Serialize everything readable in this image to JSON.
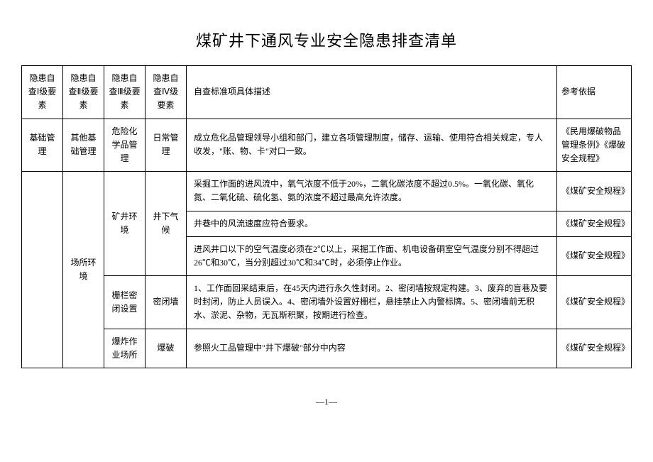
{
  "title": "煤矿井下通风专业安全隐患排查清单",
  "headers": {
    "c1": "隐患自查Ⅰ级要素",
    "c2": "隐患自查Ⅱ级要素",
    "c3": "隐患自查Ⅲ级要素",
    "c4": "隐患自查Ⅳ级要素",
    "c5": "自查标准项具体描述",
    "c6": "参考依据"
  },
  "rows": [
    {
      "c1": "基础管理",
      "c2": "其他基础管理",
      "c3": "危险化学品管理",
      "c4": "日常管理",
      "c5": "成立危化品管理领导小组和部门，建立各项管理制度，储存、运输、使用符合相关规定，专人收发，\"账、物、卡\"对口一致。",
      "c6": "《民用爆破物品管理条例》《爆破安全规程》"
    },
    {
      "c1": "",
      "c2": "场所环境",
      "c3": "矿井环境",
      "c4": "井下气候",
      "c5_a": "采掘工作面的进风流中，氧气浓度不低于20%，二氧化碳浓度不超过0.5%。一氧化碳、氧化氮、二氧化硫、硫化氢、氨的浓度不超过最高允许浓度。",
      "c5_b": "井巷中的风流速度应符合要求。",
      "c5_c": "进风井口以下的空气温度必须在2℃以上，采掘工作面、机电设备硐室空气温度分别不得超过26℃和30℃，当分别超过30℃和34℃时，必须停止作业。",
      "c6_a": "《煤矿安全规程》",
      "c6_b": "《煤矿安全规程》",
      "c6_c": "《煤矿安全规程》"
    },
    {
      "c3": "栅栏密闭设置",
      "c4": "密闭墙",
      "c5": "1、工作面回采结束后，在45天内进行永久性封闭。2、密闭墙按规定构建。3、废弃的盲巷及要时封闭，防止人员误入。4、密闭墙外设置好栅栏，悬挂禁止入内警标牌。5、密闭墙前无积水、淤泥、杂物，无瓦斯积聚，按期进行检查。",
      "c6": "《煤矿安全规程》"
    },
    {
      "c3": "爆炸作业场所",
      "c4": "爆破",
      "c5": "参照火工品管理中\"井下爆破\"部分中内容",
      "c6": "《煤矿安全规程》"
    }
  ],
  "pageNum": "—1—"
}
